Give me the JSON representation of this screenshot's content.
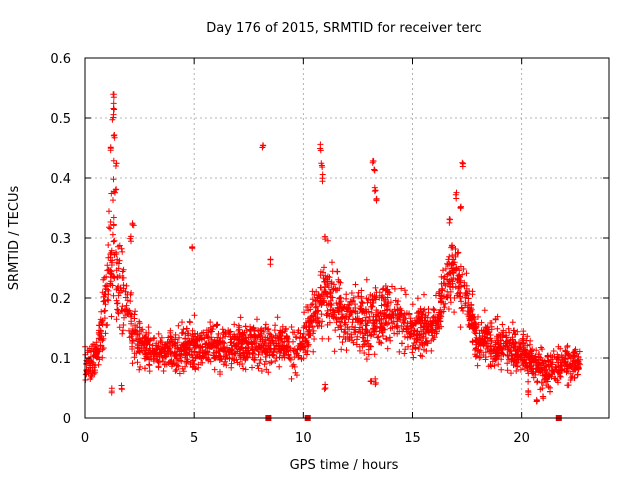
{
  "chart_data": {
    "type": "scatter",
    "title": "Day 176 of 2015, SRMTID for receiver terc",
    "xlabel": "GPS time / hours",
    "ylabel": "SRMTID / TECUs",
    "xlim": [
      0,
      24
    ],
    "ylim": [
      0,
      0.6
    ],
    "xticks": [
      0,
      5,
      10,
      15,
      20
    ],
    "xtick_labels": [
      "0",
      "5",
      "10",
      "15",
      "20"
    ],
    "yticks": [
      0,
      0.1,
      0.2,
      0.3,
      0.4,
      0.5,
      0.6
    ],
    "ytick_labels": [
      "0",
      "0.1",
      "0.2",
      "0.3",
      "0.4",
      "0.5",
      "0.6"
    ],
    "grid": true,
    "marker": "plus",
    "color": "#ff0000",
    "gap_markers_x": [
      8.4,
      10.2,
      21.7
    ],
    "profile": [
      [
        0.0,
        0.09,
        0.03
      ],
      [
        0.5,
        0.1,
        0.03
      ],
      [
        0.8,
        0.15,
        0.05
      ],
      [
        1.0,
        0.22,
        0.08
      ],
      [
        1.3,
        0.3,
        0.12
      ],
      [
        1.6,
        0.22,
        0.08
      ],
      [
        2.0,
        0.17,
        0.05
      ],
      [
        2.5,
        0.13,
        0.04
      ],
      [
        3.0,
        0.11,
        0.03
      ],
      [
        4.0,
        0.11,
        0.03
      ],
      [
        5.0,
        0.12,
        0.04
      ],
      [
        6.0,
        0.12,
        0.035
      ],
      [
        7.0,
        0.12,
        0.035
      ],
      [
        8.0,
        0.12,
        0.035
      ],
      [
        9.0,
        0.12,
        0.035
      ],
      [
        9.8,
        0.11,
        0.035
      ],
      [
        10.5,
        0.17,
        0.05
      ],
      [
        11.0,
        0.21,
        0.06
      ],
      [
        12.0,
        0.17,
        0.05
      ],
      [
        13.0,
        0.16,
        0.05
      ],
      [
        14.0,
        0.18,
        0.05
      ],
      [
        15.0,
        0.15,
        0.04
      ],
      [
        16.0,
        0.15,
        0.04
      ],
      [
        16.8,
        0.25,
        0.06
      ],
      [
        17.3,
        0.22,
        0.05
      ],
      [
        18.0,
        0.13,
        0.04
      ],
      [
        19.0,
        0.12,
        0.035
      ],
      [
        20.0,
        0.11,
        0.035
      ],
      [
        21.0,
        0.08,
        0.03
      ],
      [
        21.8,
        0.09,
        0.03
      ],
      [
        22.7,
        0.09,
        0.02
      ]
    ],
    "spikes": [
      [
        1.3,
        0.54
      ],
      [
        1.32,
        0.52
      ],
      [
        1.28,
        0.5
      ],
      [
        1.35,
        0.47
      ],
      [
        1.42,
        0.42
      ],
      [
        1.4,
        0.38
      ],
      [
        1.2,
        0.45
      ],
      [
        2.2,
        0.32
      ],
      [
        2.1,
        0.3
      ],
      [
        4.9,
        0.28
      ],
      [
        8.15,
        0.45
      ],
      [
        8.5,
        0.26
      ],
      [
        10.8,
        0.45
      ],
      [
        10.85,
        0.42
      ],
      [
        10.9,
        0.4
      ],
      [
        11.0,
        0.3
      ],
      [
        13.2,
        0.43
      ],
      [
        13.25,
        0.41
      ],
      [
        13.3,
        0.38
      ],
      [
        13.35,
        0.36
      ],
      [
        17.3,
        0.42
      ],
      [
        17.0,
        0.37
      ],
      [
        17.2,
        0.35
      ],
      [
        16.7,
        0.33
      ]
    ],
    "dips": [
      [
        1.2,
        0.045
      ],
      [
        1.7,
        0.05
      ],
      [
        11.0,
        0.05
      ],
      [
        13.1,
        0.06
      ],
      [
        13.3,
        0.06
      ],
      [
        20.3,
        0.04
      ],
      [
        20.7,
        0.03
      ],
      [
        21.0,
        0.03
      ],
      [
        21.3,
        0.045
      ]
    ],
    "n_points": 2600,
    "sample_rate_per_hour": 120
  }
}
